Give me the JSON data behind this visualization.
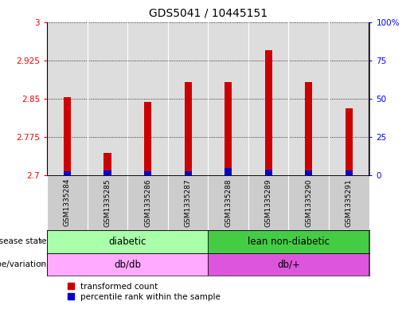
{
  "title": "GDS5041 / 10445151",
  "samples": [
    "GSM1335284",
    "GSM1335285",
    "GSM1335286",
    "GSM1335287",
    "GSM1335288",
    "GSM1335289",
    "GSM1335290",
    "GSM1335291"
  ],
  "red_values": [
    2.853,
    2.745,
    2.843,
    2.883,
    2.883,
    2.945,
    2.883,
    2.832
  ],
  "blue_values_pct": [
    3.0,
    3.5,
    3.0,
    3.0,
    5.0,
    4.0,
    3.5,
    3.5
  ],
  "ymin": 2.7,
  "ymax": 3.0,
  "yticks": [
    2.7,
    2.775,
    2.85,
    2.925,
    3.0
  ],
  "ytick_labels": [
    "2.7",
    "2.775",
    "2.85",
    "2.925",
    "3"
  ],
  "y2min": 0,
  "y2max": 100,
  "y2ticks": [
    0,
    25,
    50,
    75,
    100
  ],
  "y2tick_labels": [
    "0",
    "25",
    "50",
    "75",
    "100%"
  ],
  "disease_state_groups": [
    {
      "label": "diabetic",
      "start": 0,
      "end": 4,
      "color": "#aaffaa"
    },
    {
      "label": "lean non-diabetic",
      "start": 4,
      "end": 8,
      "color": "#44cc44"
    }
  ],
  "genotype_groups": [
    {
      "label": "db/db",
      "start": 0,
      "end": 4,
      "color": "#ffaaff"
    },
    {
      "label": "db/+",
      "start": 4,
      "end": 8,
      "color": "#dd55dd"
    }
  ],
  "bar_width": 0.18,
  "red_color": "#cc0000",
  "blue_color": "#0000cc",
  "label_disease_state": "disease state",
  "label_genotype": "genotype/variation",
  "legend_red": "transformed count",
  "legend_blue": "percentile rank within the sample",
  "title_fontsize": 10,
  "tick_fontsize": 7.5,
  "sample_fontsize": 6.5,
  "band_fontsize": 8.5,
  "label_fontsize": 7.5,
  "legend_fontsize": 7.5
}
